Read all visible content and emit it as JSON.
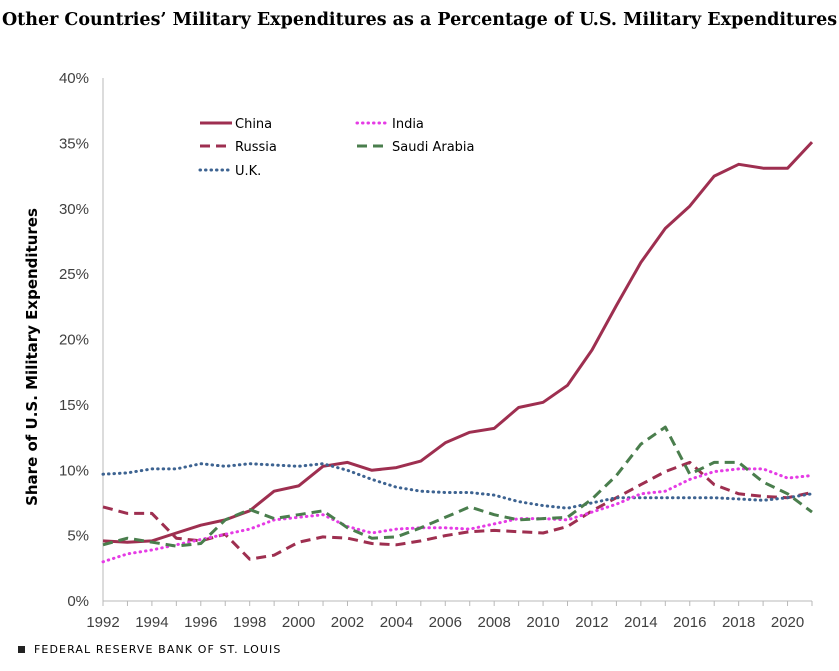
{
  "footer": {
    "text": "FEDERAL RESERVE BANK OF ST. LOUIS"
  },
  "chart_data": {
    "type": "line",
    "title": "Other Countries’ Military Expenditures as a Percentage of U.S. Military Expenditures",
    "xlabel": "",
    "ylabel": "Share of U.S. Military Expenditures",
    "xlim": [
      1992,
      2021
    ],
    "ylim": [
      0,
      40
    ],
    "x_ticks": [
      1992,
      1994,
      1996,
      1998,
      2000,
      2002,
      2004,
      2006,
      2008,
      2010,
      2012,
      2014,
      2016,
      2018,
      2020
    ],
    "y_ticks": [
      "0%",
      "5%",
      "10%",
      "15%",
      "20%",
      "25%",
      "30%",
      "35%",
      "40%"
    ],
    "grid": false,
    "legend_position": "top-left",
    "x": [
      1992,
      1993,
      1994,
      1995,
      1996,
      1997,
      1998,
      1999,
      2000,
      2001,
      2002,
      2003,
      2004,
      2005,
      2006,
      2007,
      2008,
      2009,
      2010,
      2011,
      2012,
      2013,
      2014,
      2015,
      2016,
      2017,
      2018,
      2019,
      2020,
      2021
    ],
    "series": [
      {
        "name": "China",
        "color": "#9e2f50",
        "style": "solid",
        "values": [
          4.6,
          4.5,
          4.6,
          5.2,
          5.8,
          6.2,
          6.9,
          8.4,
          8.8,
          10.3,
          10.6,
          10.0,
          10.2,
          10.7,
          12.1,
          12.9,
          13.2,
          14.8,
          15.2,
          16.5,
          19.2,
          22.6,
          25.9,
          28.5,
          30.2,
          32.5,
          33.4,
          33.1,
          33.1,
          35.1
        ]
      },
      {
        "name": "Russia",
        "color": "#9e2f50",
        "style": "dashed",
        "values": [
          7.2,
          6.7,
          6.7,
          4.8,
          4.6,
          5.1,
          3.2,
          3.5,
          4.5,
          4.9,
          4.8,
          4.4,
          4.3,
          4.6,
          5.0,
          5.3,
          5.4,
          5.3,
          5.2,
          5.7,
          6.9,
          7.9,
          8.9,
          9.9,
          10.6,
          8.9,
          8.2,
          8.0,
          7.9,
          8.3
        ]
      },
      {
        "name": "U.K.",
        "color": "#3d6391",
        "style": "dotted",
        "values": [
          9.7,
          9.8,
          10.1,
          10.1,
          10.5,
          10.3,
          10.5,
          10.4,
          10.3,
          10.5,
          10.0,
          9.3,
          8.7,
          8.4,
          8.3,
          8.3,
          8.1,
          7.6,
          7.3,
          7.1,
          7.5,
          7.9,
          7.9,
          7.9,
          7.9,
          7.9,
          7.8,
          7.7,
          7.9,
          8.2
        ]
      },
      {
        "name": "India",
        "color": "#e53be5",
        "style": "dotted",
        "values": [
          3.0,
          3.6,
          3.9,
          4.3,
          4.7,
          5.1,
          5.5,
          6.2,
          6.4,
          6.6,
          5.7,
          5.2,
          5.5,
          5.6,
          5.6,
          5.5,
          5.9,
          6.3,
          6.3,
          6.2,
          6.8,
          7.4,
          8.2,
          8.4,
          9.3,
          9.9,
          10.1,
          10.1,
          9.4,
          9.6
        ]
      },
      {
        "name": "Saudi Arabia",
        "color": "#4a7e4d",
        "style": "dashed",
        "values": [
          4.3,
          4.8,
          4.5,
          4.2,
          4.4,
          6.2,
          7.0,
          6.3,
          6.6,
          6.9,
          5.6,
          4.8,
          4.9,
          5.6,
          6.4,
          7.2,
          6.6,
          6.2,
          6.3,
          6.4,
          7.8,
          9.6,
          12.0,
          13.3,
          9.7,
          10.6,
          10.6,
          9.1,
          8.2,
          6.8
        ]
      }
    ]
  }
}
